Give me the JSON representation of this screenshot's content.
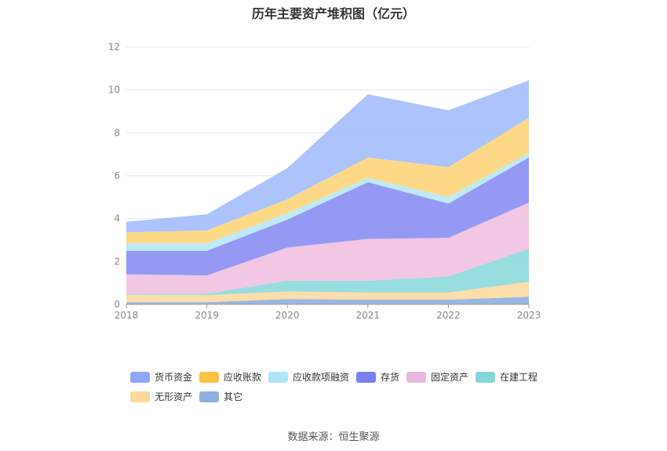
{
  "chart_data": {
    "type": "area",
    "stacked": true,
    "title": "历年主要资产堆积图（亿元）",
    "x": [
      "2018",
      "2019",
      "2020",
      "2021",
      "2022",
      "2023"
    ],
    "ylim": [
      0,
      12
    ],
    "yticks": [
      0,
      2,
      4,
      6,
      8,
      10,
      12
    ],
    "grid": true,
    "legend_position": "bottom",
    "series": [
      {
        "name": "其它",
        "color": "#8eafe0",
        "values": [
          0.1,
          0.1,
          0.25,
          0.22,
          0.22,
          0.35
        ]
      },
      {
        "name": "无形资产",
        "color": "#fdd9a0",
        "values": [
          0.35,
          0.33,
          0.35,
          0.33,
          0.33,
          0.7
        ]
      },
      {
        "name": "在建工程",
        "color": "#8dd9dc",
        "values": [
          0.05,
          0.07,
          0.5,
          0.55,
          0.75,
          1.55
        ]
      },
      {
        "name": "固定资产",
        "color": "#efc1e0",
        "values": [
          0.9,
          0.85,
          1.55,
          1.95,
          1.8,
          2.15
        ]
      },
      {
        "name": "存货",
        "color": "#8a8ef2",
        "values": [
          1.1,
          1.15,
          1.3,
          2.65,
          1.6,
          2.1
        ]
      },
      {
        "name": "应收款项融资",
        "color": "#b7e7f8",
        "values": [
          0.35,
          0.35,
          0.3,
          0.2,
          0.3,
          0.2
        ]
      },
      {
        "name": "应收账款",
        "color": "#fdd57a",
        "values": [
          0.5,
          0.6,
          0.65,
          0.95,
          1.4,
          1.65
        ]
      },
      {
        "name": "货币资金",
        "color": "#a3bdfb",
        "values": [
          0.5,
          0.75,
          1.45,
          2.95,
          2.65,
          1.75
        ]
      }
    ]
  },
  "legend": [
    {
      "name": "货币资金",
      "color": "#8fa8f8"
    },
    {
      "name": "应收账款",
      "color": "#fcc444"
    },
    {
      "name": "应收款项融资",
      "color": "#aee3f8"
    },
    {
      "name": "存货",
      "color": "#7b7ff0"
    },
    {
      "name": "固定资产",
      "color": "#ebb8db"
    },
    {
      "name": "在建工程",
      "color": "#86d6d8"
    },
    {
      "name": "无形资产",
      "color": "#fcd89a"
    },
    {
      "name": "其它",
      "color": "#90aede"
    }
  ],
  "footer": "数据来源：恒生聚源"
}
